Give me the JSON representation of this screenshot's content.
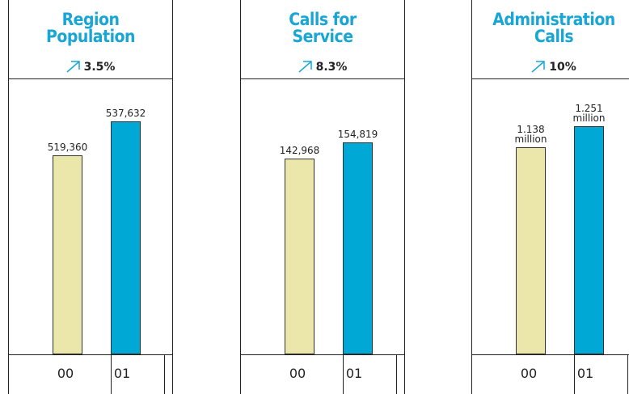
{
  "chart_data": [
    {
      "type": "bar",
      "title": "Region Population",
      "change": "3.5%",
      "categories": [
        "00",
        "01"
      ],
      "values": [
        519360,
        537632
      ],
      "value_labels": [
        "519,360",
        "537,632"
      ],
      "colors": [
        "#ebe6a9",
        "#00a8d6"
      ],
      "ylim": [
        410000,
        560000
      ]
    },
    {
      "type": "bar",
      "title": "Calls for Service",
      "change": "8.3%",
      "categories": [
        "00",
        "01"
      ],
      "values": [
        142968,
        154819
      ],
      "value_labels": [
        "142,968",
        "154,819"
      ],
      "colors": [
        "#ebe6a9",
        "#00a8d6"
      ],
      "ylim": [
        0,
        200000
      ]
    },
    {
      "type": "bar",
      "title": "Administration Calls",
      "change": "10%",
      "categories": [
        "00",
        "01"
      ],
      "values": [
        1138000,
        1251000
      ],
      "value_labels": [
        "1.138 million",
        "1.251 million"
      ],
      "colors": [
        "#ebe6a9",
        "#00a8d6"
      ],
      "ylim": [
        0,
        1500000
      ]
    }
  ]
}
